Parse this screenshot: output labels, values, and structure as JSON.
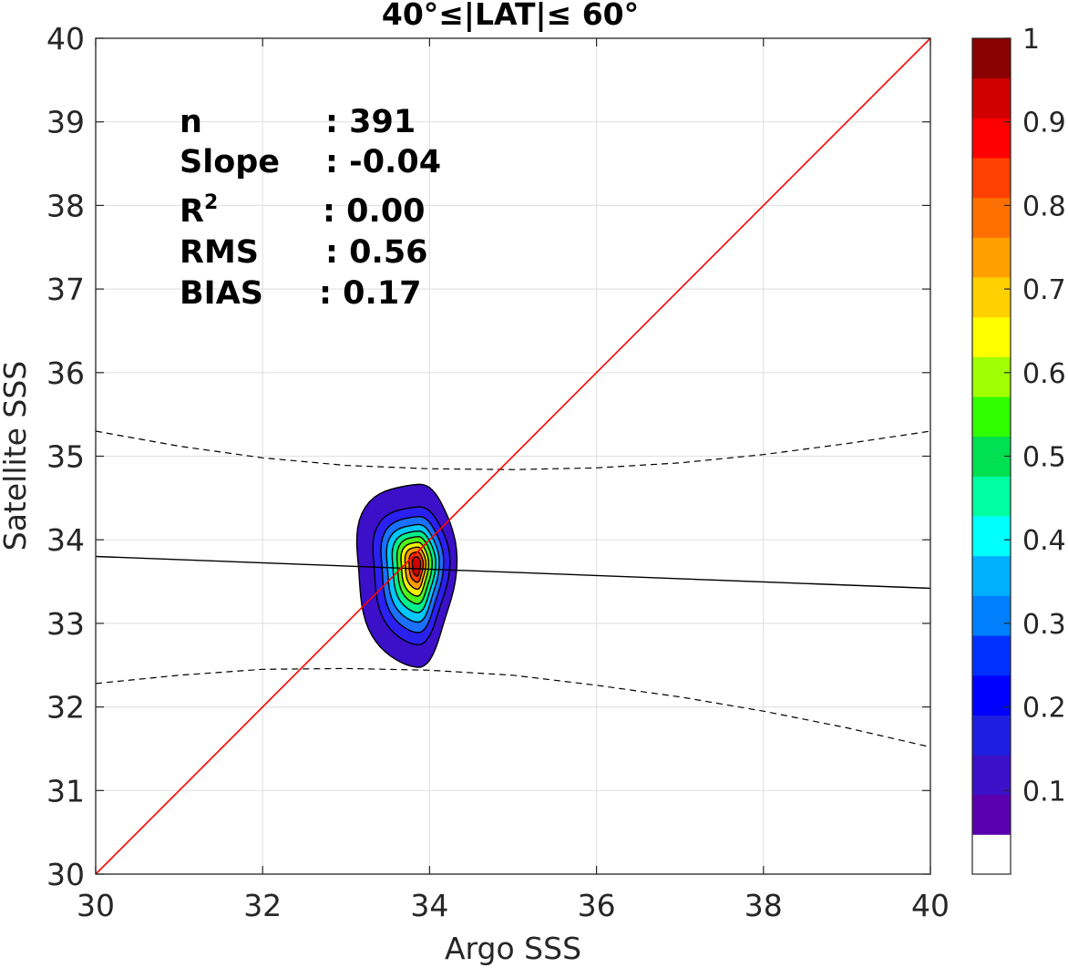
{
  "chart_data": {
    "type": "contour",
    "title": "40°≤|LAT|≤ 60°",
    "xlabel": "Argo SSS",
    "ylabel": "Satellite SSS",
    "xlim": [
      30,
      40
    ],
    "ylim": [
      30,
      40
    ],
    "xticks": [
      "30",
      "32",
      "34",
      "36",
      "38",
      "40"
    ],
    "yticks": [
      "30",
      "31",
      "32",
      "33",
      "34",
      "35",
      "36",
      "37",
      "38",
      "39",
      "40"
    ],
    "grid": true,
    "stats": {
      "n_label": "n",
      "n_value": ": 391",
      "slope_label": "Slope",
      "slope_value": ": -0.04",
      "r2_label": "R",
      "r2_sup": "2",
      "r2_value": ": 0.00",
      "rms_label": "RMS",
      "rms_value": ": 0.56",
      "bias_label": "BIAS",
      "bias_value": ": 0.17"
    },
    "one_to_one_line": {
      "x": [
        30,
        40
      ],
      "y": [
        30,
        40
      ],
      "color": "#ff0000"
    },
    "regression_line": {
      "x": [
        30,
        40
      ],
      "y": [
        33.8,
        33.42
      ],
      "color": "#000000"
    },
    "confidence_upper": {
      "x": [
        30,
        31,
        32,
        33,
        34,
        35,
        36,
        37,
        38,
        39,
        40
      ],
      "y": [
        35.3,
        35.12,
        34.98,
        34.89,
        34.85,
        34.84,
        34.86,
        34.92,
        35.02,
        35.15,
        35.3
      ]
    },
    "confidence_lower": {
      "x": [
        30,
        31,
        32,
        33,
        34,
        35,
        36,
        37,
        38,
        39,
        40
      ],
      "y": [
        32.28,
        32.38,
        32.45,
        32.46,
        32.44,
        32.38,
        32.26,
        32.12,
        31.95,
        31.75,
        31.52
      ]
    },
    "density_center": {
      "x": 33.85,
      "y": 33.7
    },
    "density_levels": [
      0.05,
      0.15,
      0.25,
      0.35,
      0.45,
      0.55,
      0.65,
      0.75,
      0.85,
      0.95
    ],
    "contour_rings": [
      {
        "level": 0.05,
        "color": "#3b10c8",
        "dx_left": 0.75,
        "dx_right": 0.45,
        "dy_up": 1.0,
        "dy_down": 1.18
      },
      {
        "level": 0.15,
        "color": "#2a20f0",
        "dx_left": 0.55,
        "dx_right": 0.37,
        "dy_up": 0.72,
        "dy_down": 0.92
      },
      {
        "level": 0.25,
        "color": "#1a70ff",
        "dx_left": 0.45,
        "dx_right": 0.3,
        "dy_up": 0.6,
        "dy_down": 0.78
      },
      {
        "level": 0.35,
        "color": "#00c8ff",
        "dx_left": 0.38,
        "dx_right": 0.25,
        "dy_up": 0.5,
        "dy_down": 0.66
      },
      {
        "level": 0.45,
        "color": "#00f08c",
        "dx_left": 0.31,
        "dx_right": 0.21,
        "dy_up": 0.42,
        "dy_down": 0.55
      },
      {
        "level": 0.55,
        "color": "#4ef21a",
        "dx_left": 0.25,
        "dx_right": 0.17,
        "dy_up": 0.35,
        "dy_down": 0.45
      },
      {
        "level": 0.65,
        "color": "#f0f000",
        "dx_left": 0.2,
        "dx_right": 0.13,
        "dy_up": 0.28,
        "dy_down": 0.36
      },
      {
        "level": 0.75,
        "color": "#ff9c00",
        "dx_left": 0.15,
        "dx_right": 0.1,
        "dy_up": 0.22,
        "dy_down": 0.28
      },
      {
        "level": 0.85,
        "color": "#ff3c00",
        "dx_left": 0.1,
        "dx_right": 0.07,
        "dy_up": 0.16,
        "dy_down": 0.2
      },
      {
        "level": 0.95,
        "color": "#cc0000",
        "dx_left": 0.06,
        "dx_right": 0.04,
        "dy_up": 0.1,
        "dy_down": 0.13
      }
    ],
    "colorbar": {
      "colors": [
        "#ffffff",
        "#5a00b0",
        "#3b10c8",
        "#1e1ee0",
        "#0000ff",
        "#0030ff",
        "#0080ff",
        "#00b0ff",
        "#00ffff",
        "#00ffa0",
        "#00e050",
        "#30ff00",
        "#a0ff00",
        "#ffff00",
        "#ffd000",
        "#ffa000",
        "#ff7000",
        "#ff4000",
        "#ff0000",
        "#d00000",
        "#8b0000"
      ],
      "labels": [
        "1",
        "0.9",
        "0.8",
        "0.7",
        "0.6",
        "0.5",
        "0.4",
        "0.3",
        "0.2",
        "0.1"
      ],
      "label_values": [
        1,
        0.9,
        0.8,
        0.7,
        0.6,
        0.5,
        0.4,
        0.3,
        0.2,
        0.1
      ]
    }
  }
}
